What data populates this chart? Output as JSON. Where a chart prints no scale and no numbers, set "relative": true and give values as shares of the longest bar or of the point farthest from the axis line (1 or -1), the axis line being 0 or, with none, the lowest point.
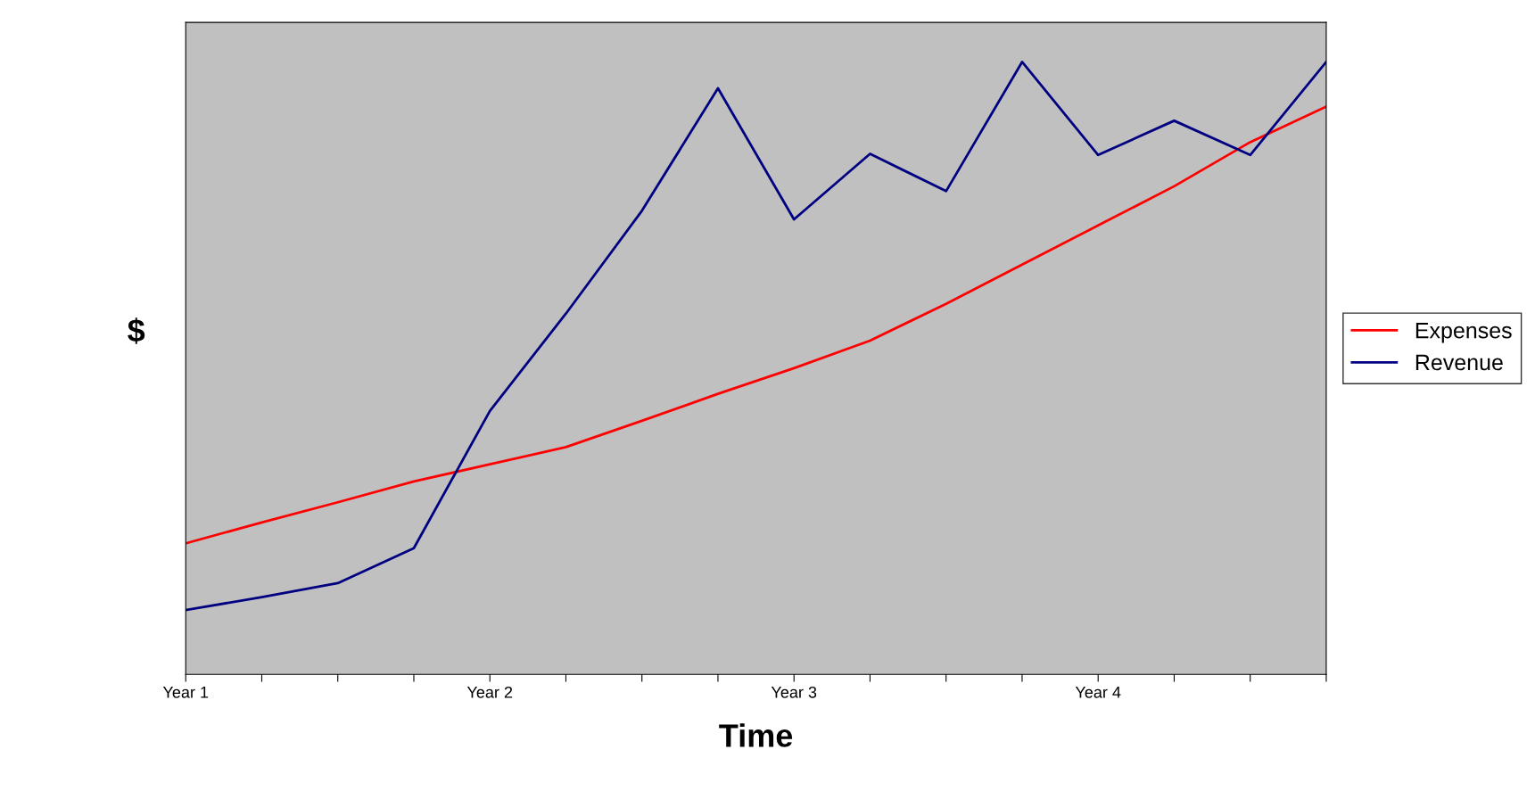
{
  "chart_data": {
    "type": "line",
    "xlabel": "Time",
    "ylabel": "$",
    "relative": true,
    "legend": "right",
    "grid": false,
    "marker": "none",
    "line_style": "solid",
    "categories": [
      "Year 1",
      null,
      null,
      null,
      "Year 2",
      null,
      null,
      null,
      "Year 3",
      null,
      null,
      null,
      "Year 4",
      null,
      null,
      null
    ],
    "series": [
      {
        "name": "Expenses",
        "color": "#ff0000",
        "values": [
          0.214,
          0.248,
          0.281,
          0.315,
          0.343,
          0.371,
          0.414,
          0.458,
          0.5,
          0.545,
          0.605,
          0.669,
          0.733,
          0.797,
          0.869,
          0.927
        ]
      },
      {
        "name": "Revenue",
        "color": "#000080",
        "values": [
          0.105,
          0.126,
          0.149,
          0.206,
          0.43,
          0.589,
          0.757,
          0.957,
          0.743,
          0.85,
          0.789,
          1.0,
          0.848,
          0.904,
          0.848,
          1.0
        ]
      }
    ]
  }
}
